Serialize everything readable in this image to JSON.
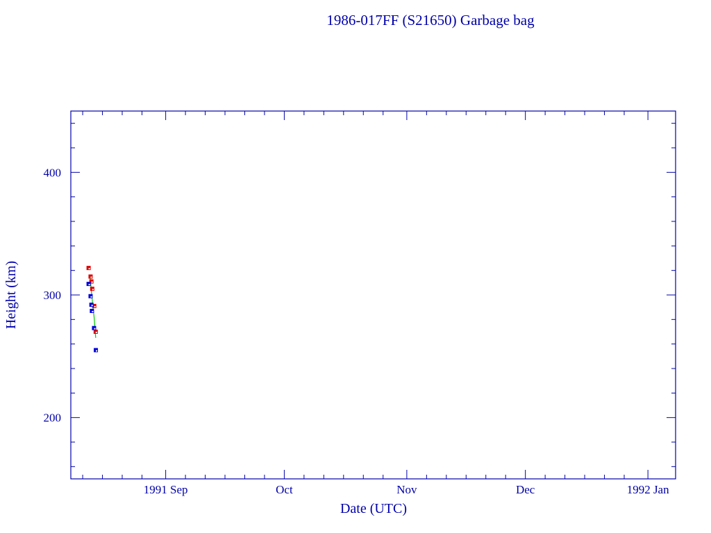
{
  "chart_data": {
    "type": "scatter",
    "title": "1986-017FF (S21650) Garbage bag",
    "xlabel": "Date (UTC)",
    "ylabel": "Height (km)",
    "xlim": [
      "1991-08-08",
      "1992-01-08"
    ],
    "ylim": [
      150,
      450
    ],
    "x_ticks": [
      {
        "date": "1991-09-01",
        "label": "1991 Sep"
      },
      {
        "date": "1991-10-01",
        "label": "Oct"
      },
      {
        "date": "1991-11-01",
        "label": "Nov"
      },
      {
        "date": "1991-12-01",
        "label": "Dec"
      },
      {
        "date": "1992-01-01",
        "label": "1992 Jan"
      }
    ],
    "y_ticks": [
      200,
      300,
      400
    ],
    "grid": false,
    "colors": {
      "axis": "#0000aa",
      "apogee": "#dd0000",
      "perigee": "#0000dd",
      "fit": "#00cc00"
    },
    "series": [
      {
        "marker": "square",
        "color": "#dd0000",
        "points": [
          [
            "1991-08-12T12:00",
            322
          ],
          [
            "1991-08-13T00:00",
            315
          ],
          [
            "1991-08-13T05:00",
            311
          ],
          [
            "1991-08-13T10:00",
            305
          ],
          [
            "1991-08-13T22:00",
            291
          ],
          [
            "1991-08-14T07:00",
            270
          ]
        ]
      },
      {
        "marker": "square",
        "color": "#0000dd",
        "points": [
          [
            "1991-08-12T12:00",
            309
          ],
          [
            "1991-08-13T00:00",
            299
          ],
          [
            "1991-08-13T05:00",
            292
          ],
          [
            "1991-08-13T08:00",
            287
          ],
          [
            "1991-08-13T21:00",
            273
          ],
          [
            "1991-08-14T08:00",
            255
          ]
        ]
      },
      {
        "marker": "line",
        "color": "#00cc00",
        "points": [
          [
            "1991-08-12T20:00",
            316
          ],
          [
            "1991-08-13T05:00",
            303
          ],
          [
            "1991-08-13T13:00",
            292
          ],
          [
            "1991-08-13T22:00",
            281
          ],
          [
            "1991-08-14T07:00",
            265
          ]
        ]
      }
    ]
  }
}
